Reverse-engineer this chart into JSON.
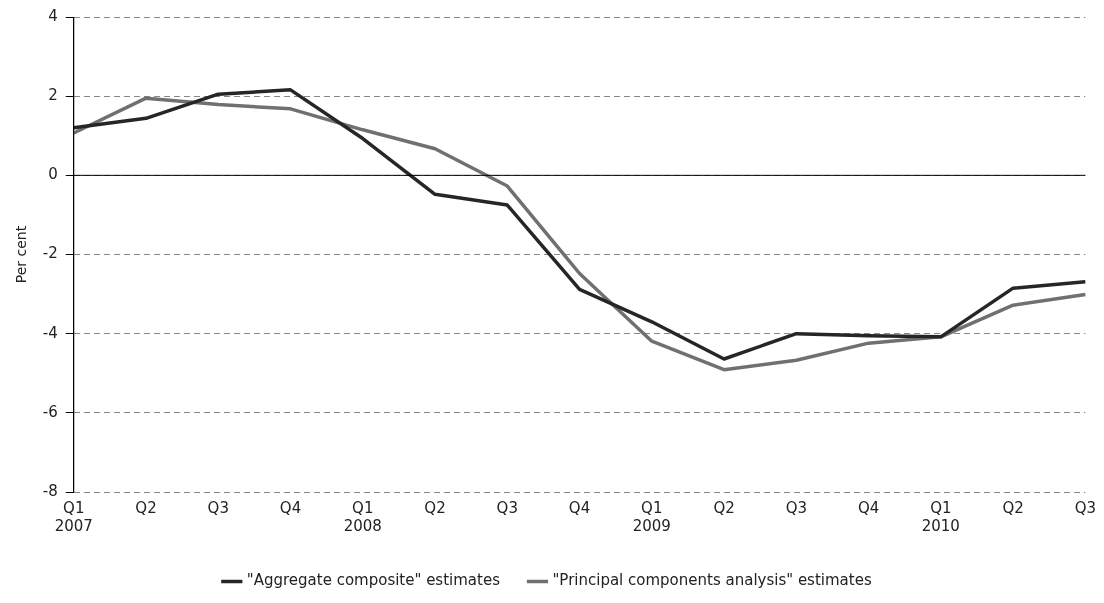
{
  "chart_data": {
    "type": "line",
    "ylabel": "Per cent",
    "categories": [
      "Q1\n2007",
      "Q2",
      "Q3",
      "Q4",
      "Q1\n2008",
      "Q2",
      "Q3",
      "Q4",
      "Q1\n2009",
      "Q2",
      "Q3",
      "Q4",
      "Q1\n2010",
      "Q2",
      "Q3"
    ],
    "series": [
      {
        "name": "\"Aggregate composite\" estimates",
        "color": "#262626",
        "values": [
          1.2,
          1.44,
          2.05,
          2.16,
          0.93,
          -0.48,
          -0.75,
          -2.88,
          -3.7,
          -4.64,
          -4.0,
          -4.05,
          -4.08,
          -2.85,
          -2.69
        ]
      },
      {
        "name": "\"Principal components analysis\" estimates",
        "color": "#707070",
        "values": [
          1.07,
          1.95,
          1.79,
          1.68,
          1.15,
          0.67,
          -0.27,
          -2.48,
          -4.19,
          -4.91,
          -4.67,
          -4.24,
          -4.08,
          -3.28,
          -3.01
        ]
      }
    ],
    "ylim": [
      -8,
      4
    ],
    "yticks": [
      -8,
      -6,
      -4,
      -2,
      0,
      2,
      4
    ],
    "grid": "y",
    "legend": "bottom",
    "marker": "none",
    "line_style": "solid"
  }
}
